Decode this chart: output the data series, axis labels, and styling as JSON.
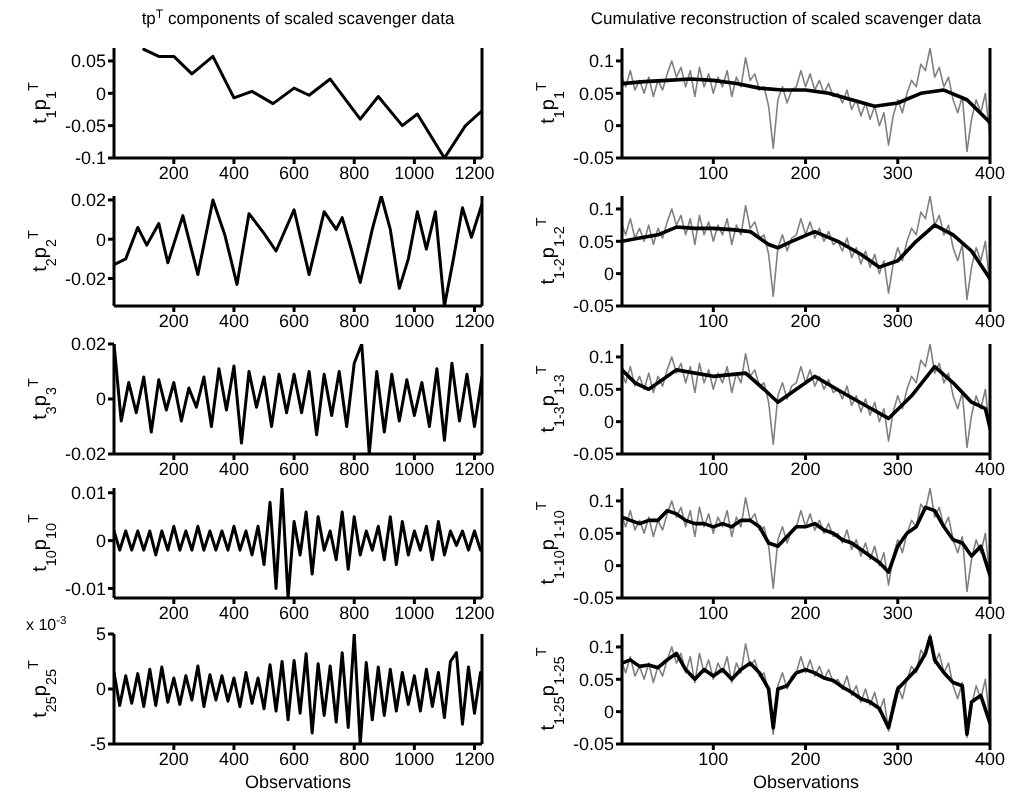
{
  "chart_data": [
    {
      "type": "line",
      "title": "tp$^{T}$ components of scaled scavenger data",
      "ylabel": "t$_{1}$p$_{1}$$^{T}$",
      "xlim": [
        1,
        1225
      ],
      "xticks": [
        200,
        400,
        600,
        800,
        1000,
        1200
      ],
      "ylim": [
        -0.1,
        0.07
      ],
      "yticks": [
        -0.1,
        -0.05,
        0,
        0.05
      ],
      "series": [
        {
          "color": "#000000",
          "x": [
            100,
            150,
            200,
            260,
            330,
            400,
            460,
            530,
            600,
            650,
            720,
            820,
            880,
            960,
            1010,
            1100,
            1170,
            1225
          ],
          "values": [
            0.068,
            0.057,
            0.057,
            0.03,
            0.057,
            -0.007,
            0.003,
            -0.016,
            0.008,
            -0.003,
            0.022,
            -0.04,
            -0.005,
            -0.05,
            -0.032,
            -0.1,
            -0.05,
            -0.027
          ]
        }
      ]
    },
    {
      "type": "line",
      "title": "Cumulative reconstruction of scaled scavenger data",
      "ylabel": "t$_{1}$p$_{1}$$^{T}$",
      "xlim": [
        1,
        400
      ],
      "xticks": [
        100,
        200,
        300,
        400
      ],
      "ylim": [
        -0.05,
        0.12
      ],
      "yticks": [
        -0.05,
        0,
        0.05,
        0.1
      ],
      "series": [
        {
          "color": "#808080",
          "x": [
            1,
            5,
            10,
            15,
            20,
            25,
            30,
            35,
            40,
            45,
            50,
            55,
            60,
            65,
            70,
            75,
            80,
            85,
            90,
            95,
            100,
            105,
            110,
            115,
            120,
            125,
            130,
            135,
            140,
            145,
            150,
            155,
            160,
            165,
            170,
            175,
            180,
            185,
            190,
            195,
            200,
            205,
            210,
            215,
            220,
            225,
            230,
            235,
            240,
            245,
            250,
            255,
            260,
            265,
            270,
            275,
            280,
            285,
            290,
            295,
            300,
            305,
            310,
            315,
            320,
            325,
            330,
            335,
            340,
            345,
            350,
            355,
            360,
            365,
            370,
            375,
            380,
            385,
            390,
            395,
            400
          ],
          "values": [
            0.075,
            0.06,
            0.085,
            0.055,
            0.07,
            0.05,
            0.075,
            0.045,
            0.07,
            0.055,
            0.08,
            0.1,
            0.075,
            0.09,
            0.06,
            0.085,
            0.045,
            0.09,
            0.06,
            0.08,
            0.05,
            0.075,
            0.06,
            0.085,
            0.045,
            0.075,
            0.06,
            0.105,
            0.07,
            0.08,
            0.055,
            0.06,
            0.03,
            -0.035,
            0.04,
            0.06,
            0.035,
            0.055,
            0.06,
            0.085,
            0.06,
            0.08,
            0.055,
            0.07,
            0.05,
            0.065,
            0.045,
            0.05,
            0.035,
            0.055,
            0.025,
            0.04,
            0.015,
            0.035,
            0.01,
            0.03,
            0.0,
            0.02,
            -0.03,
            0.015,
            0.04,
            0.02,
            0.05,
            0.07,
            0.06,
            0.095,
            0.085,
            0.12,
            0.075,
            0.09,
            0.06,
            0.075,
            0.04,
            0.02,
            0.045,
            -0.04,
            0.01,
            0.04,
            0.02,
            0.05,
            -0.02
          ]
        },
        {
          "color": "#000000",
          "x": [
            1,
            25,
            50,
            75,
            100,
            125,
            150,
            175,
            200,
            225,
            250,
            275,
            300,
            325,
            350,
            375,
            400
          ],
          "values": [
            0.065,
            0.068,
            0.07,
            0.072,
            0.07,
            0.065,
            0.058,
            0.055,
            0.055,
            0.05,
            0.04,
            0.03,
            0.035,
            0.05,
            0.055,
            0.04,
            0.005
          ]
        }
      ]
    },
    {
      "type": "line",
      "ylabel": "t$_{2}$p$_{2}$$^{T}$",
      "xlim": [
        1,
        1225
      ],
      "xticks": [
        200,
        400,
        600,
        800,
        1000,
        1200
      ],
      "ylim": [
        -0.034,
        0.022
      ],
      "yticks": [
        -0.02,
        0,
        0.02
      ],
      "series": [
        {
          "color": "#000000",
          "x": [
            1,
            40,
            80,
            110,
            150,
            180,
            230,
            280,
            330,
            370,
            410,
            450,
            500,
            540,
            600,
            650,
            700,
            740,
            760,
            790,
            820,
            860,
            890,
            920,
            950,
            980,
            1010,
            1040,
            1070,
            1100,
            1130,
            1160,
            1190,
            1225
          ],
          "values": [
            -0.013,
            -0.01,
            0.006,
            -0.003,
            0.008,
            -0.012,
            0.012,
            -0.018,
            0.02,
            0.002,
            -0.023,
            0.013,
            0.003,
            -0.006,
            0.015,
            -0.018,
            0.014,
            0.005,
            0.011,
            -0.005,
            -0.022,
            0.005,
            0.022,
            0.005,
            -0.025,
            -0.01,
            0.014,
            -0.005,
            0.014,
            -0.034,
            -0.01,
            0.016,
            0.001,
            0.018
          ]
        }
      ]
    },
    {
      "type": "line",
      "ylabel": "t$_{1-2}$p$_{1-2}$$^{T}$",
      "xlim": [
        1,
        400
      ],
      "xticks": [
        100,
        200,
        300,
        400
      ],
      "ylim": [
        -0.05,
        0.12
      ],
      "yticks": [
        -0.05,
        0,
        0.05,
        0.1
      ],
      "series": [
        {
          "color": "#808080",
          "x": [
            1,
            5,
            10,
            15,
            20,
            25,
            30,
            35,
            40,
            45,
            50,
            55,
            60,
            65,
            70,
            75,
            80,
            85,
            90,
            95,
            100,
            105,
            110,
            115,
            120,
            125,
            130,
            135,
            140,
            145,
            150,
            155,
            160,
            165,
            170,
            175,
            180,
            185,
            190,
            195,
            200,
            205,
            210,
            215,
            220,
            225,
            230,
            235,
            240,
            245,
            250,
            255,
            260,
            265,
            270,
            275,
            280,
            285,
            290,
            295,
            300,
            305,
            310,
            315,
            320,
            325,
            330,
            335,
            340,
            345,
            350,
            355,
            360,
            365,
            370,
            375,
            380,
            385,
            390,
            395,
            400
          ],
          "values": [
            0.075,
            0.06,
            0.085,
            0.055,
            0.07,
            0.05,
            0.075,
            0.045,
            0.07,
            0.055,
            0.08,
            0.1,
            0.075,
            0.09,
            0.06,
            0.085,
            0.045,
            0.09,
            0.06,
            0.08,
            0.05,
            0.075,
            0.06,
            0.085,
            0.045,
            0.075,
            0.06,
            0.105,
            0.07,
            0.08,
            0.055,
            0.06,
            0.03,
            -0.035,
            0.04,
            0.06,
            0.035,
            0.055,
            0.06,
            0.085,
            0.06,
            0.08,
            0.055,
            0.07,
            0.05,
            0.065,
            0.045,
            0.05,
            0.035,
            0.055,
            0.025,
            0.04,
            0.015,
            0.035,
            0.01,
            0.03,
            0.0,
            0.02,
            -0.03,
            0.015,
            0.04,
            0.02,
            0.05,
            0.07,
            0.06,
            0.095,
            0.085,
            0.12,
            0.075,
            0.09,
            0.06,
            0.075,
            0.04,
            0.02,
            0.045,
            -0.04,
            0.01,
            0.04,
            0.02,
            0.05,
            -0.02
          ]
        },
        {
          "color": "#000000",
          "x": [
            1,
            20,
            40,
            60,
            80,
            100,
            120,
            140,
            160,
            170,
            185,
            210,
            235,
            260,
            280,
            300,
            320,
            340,
            360,
            380,
            400
          ],
          "values": [
            0.05,
            0.055,
            0.06,
            0.072,
            0.07,
            0.07,
            0.068,
            0.065,
            0.045,
            0.04,
            0.05,
            0.065,
            0.05,
            0.03,
            0.01,
            0.02,
            0.05,
            0.075,
            0.06,
            0.035,
            -0.008
          ]
        }
      ]
    },
    {
      "type": "line",
      "ylabel": "t$_{3}$p$_{3}$$^{T}$",
      "xlim": [
        1,
        1225
      ],
      "xticks": [
        200,
        400,
        600,
        800,
        1000,
        1200
      ],
      "ylim": [
        -0.02,
        0.02
      ],
      "yticks": [
        -0.02,
        0,
        0.02
      ],
      "series": [
        {
          "color": "#000000",
          "x": [
            1,
            25,
            50,
            75,
            100,
            125,
            150,
            175,
            200,
            225,
            250,
            275,
            300,
            325,
            350,
            375,
            400,
            425,
            450,
            475,
            500,
            525,
            550,
            575,
            600,
            625,
            650,
            675,
            700,
            725,
            750,
            775,
            800,
            825,
            850,
            875,
            900,
            925,
            950,
            975,
            1000,
            1025,
            1050,
            1075,
            1100,
            1125,
            1150,
            1175,
            1200,
            1225
          ],
          "values": [
            0.02,
            -0.008,
            0.006,
            -0.005,
            0.008,
            -0.012,
            0.007,
            -0.004,
            0.006,
            -0.008,
            0.004,
            -0.003,
            0.008,
            -0.01,
            0.011,
            -0.004,
            0.012,
            -0.016,
            0.01,
            -0.003,
            0.008,
            -0.01,
            0.009,
            -0.005,
            0.009,
            -0.005,
            0.01,
            -0.013,
            0.009,
            -0.006,
            0.01,
            -0.01,
            0.013,
            0.02,
            -0.02,
            0.01,
            -0.012,
            0.009,
            -0.008,
            0.007,
            -0.006,
            0.006,
            -0.01,
            0.011,
            -0.015,
            0.013,
            -0.008,
            0.009,
            -0.01,
            0.008
          ]
        }
      ]
    },
    {
      "type": "line",
      "ylabel": "t$_{1-3}$p$_{1-3}$$^{T}$",
      "xlim": [
        1,
        400
      ],
      "xticks": [
        100,
        200,
        300,
        400
      ],
      "ylim": [
        -0.05,
        0.12
      ],
      "yticks": [
        -0.05,
        0,
        0.05,
        0.1
      ],
      "series": [
        {
          "color": "#808080",
          "x": [
            1,
            5,
            10,
            15,
            20,
            25,
            30,
            35,
            40,
            45,
            50,
            55,
            60,
            65,
            70,
            75,
            80,
            85,
            90,
            95,
            100,
            105,
            110,
            115,
            120,
            125,
            130,
            135,
            140,
            145,
            150,
            155,
            160,
            165,
            170,
            175,
            180,
            185,
            190,
            195,
            200,
            205,
            210,
            215,
            220,
            225,
            230,
            235,
            240,
            245,
            250,
            255,
            260,
            265,
            270,
            275,
            280,
            285,
            290,
            295,
            300,
            305,
            310,
            315,
            320,
            325,
            330,
            335,
            340,
            345,
            350,
            355,
            360,
            365,
            370,
            375,
            380,
            385,
            390,
            395,
            400
          ],
          "values": [
            0.075,
            0.06,
            0.085,
            0.055,
            0.07,
            0.05,
            0.075,
            0.045,
            0.07,
            0.055,
            0.08,
            0.1,
            0.075,
            0.09,
            0.06,
            0.085,
            0.045,
            0.09,
            0.06,
            0.08,
            0.05,
            0.075,
            0.06,
            0.085,
            0.045,
            0.075,
            0.06,
            0.105,
            0.07,
            0.08,
            0.055,
            0.06,
            0.03,
            -0.035,
            0.04,
            0.06,
            0.035,
            0.055,
            0.06,
            0.085,
            0.06,
            0.08,
            0.055,
            0.07,
            0.05,
            0.065,
            0.045,
            0.05,
            0.035,
            0.055,
            0.025,
            0.04,
            0.015,
            0.035,
            0.01,
            0.03,
            0.0,
            0.02,
            -0.03,
            0.015,
            0.04,
            0.02,
            0.05,
            0.07,
            0.06,
            0.095,
            0.085,
            0.12,
            0.075,
            0.09,
            0.06,
            0.075,
            0.04,
            0.02,
            0.045,
            -0.04,
            0.01,
            0.04,
            0.02,
            0.05,
            -0.02
          ]
        },
        {
          "color": "#000000",
          "x": [
            1,
            15,
            30,
            60,
            100,
            135,
            155,
            170,
            190,
            210,
            240,
            265,
            290,
            315,
            340,
            360,
            380,
            395,
            400
          ],
          "values": [
            0.08,
            0.06,
            0.05,
            0.08,
            0.07,
            0.075,
            0.05,
            0.03,
            0.05,
            0.07,
            0.045,
            0.025,
            0.005,
            0.04,
            0.085,
            0.06,
            0.03,
            0.02,
            -0.01
          ]
        }
      ]
    },
    {
      "type": "line",
      "ylabel": "t$_{10}$p$_{10}$$^{T}$",
      "xlim": [
        1,
        1225
      ],
      "xticks": [
        200,
        400,
        600,
        800,
        1000,
        1200
      ],
      "ylim": [
        -0.012,
        0.011
      ],
      "yticks": [
        -0.01,
        0,
        0.01
      ],
      "series": [
        {
          "color": "#000000",
          "x": [
            1,
            20,
            40,
            60,
            80,
            100,
            120,
            140,
            160,
            180,
            200,
            220,
            240,
            260,
            280,
            300,
            320,
            340,
            360,
            380,
            400,
            420,
            440,
            460,
            480,
            500,
            520,
            540,
            560,
            580,
            600,
            620,
            640,
            660,
            680,
            700,
            720,
            740,
            760,
            780,
            800,
            820,
            840,
            860,
            880,
            900,
            920,
            940,
            960,
            980,
            1000,
            1020,
            1040,
            1060,
            1080,
            1100,
            1120,
            1140,
            1160,
            1180,
            1200,
            1220
          ],
          "values": [
            0.002,
            -0.002,
            0.002,
            -0.002,
            0.002,
            -0.002,
            0.002,
            -0.003,
            0.002,
            -0.002,
            0.003,
            -0.002,
            0.002,
            -0.002,
            0.003,
            -0.002,
            0.002,
            -0.002,
            0.002,
            -0.002,
            0.003,
            -0.002,
            0.002,
            -0.003,
            0.003,
            -0.005,
            0.008,
            -0.01,
            0.011,
            -0.012,
            0.004,
            -0.003,
            0.006,
            -0.007,
            0.005,
            -0.002,
            0.002,
            -0.004,
            0.006,
            -0.006,
            0.005,
            -0.003,
            0.002,
            -0.002,
            0.003,
            -0.004,
            0.005,
            -0.005,
            0.004,
            -0.003,
            0.002,
            -0.002,
            0.003,
            -0.004,
            0.004,
            -0.003,
            0.002,
            -0.001,
            0.002,
            -0.002,
            0.002,
            -0.002
          ]
        }
      ]
    },
    {
      "type": "line",
      "ylabel": "t$_{1-10}$p$_{1-10}$$^{T}$",
      "xlim": [
        1,
        400
      ],
      "xticks": [
        100,
        200,
        300,
        400
      ],
      "ylim": [
        -0.05,
        0.12
      ],
      "yticks": [
        -0.05,
        0,
        0.05,
        0.1
      ],
      "series": [
        {
          "color": "#808080",
          "x": [
            1,
            5,
            10,
            15,
            20,
            25,
            30,
            35,
            40,
            45,
            50,
            55,
            60,
            65,
            70,
            75,
            80,
            85,
            90,
            95,
            100,
            105,
            110,
            115,
            120,
            125,
            130,
            135,
            140,
            145,
            150,
            155,
            160,
            165,
            170,
            175,
            180,
            185,
            190,
            195,
            200,
            205,
            210,
            215,
            220,
            225,
            230,
            235,
            240,
            245,
            250,
            255,
            260,
            265,
            270,
            275,
            280,
            285,
            290,
            295,
            300,
            305,
            310,
            315,
            320,
            325,
            330,
            335,
            340,
            345,
            350,
            355,
            360,
            365,
            370,
            375,
            380,
            385,
            390,
            395,
            400
          ],
          "values": [
            0.075,
            0.06,
            0.085,
            0.055,
            0.07,
            0.05,
            0.075,
            0.045,
            0.07,
            0.055,
            0.08,
            0.1,
            0.075,
            0.09,
            0.06,
            0.085,
            0.045,
            0.09,
            0.06,
            0.08,
            0.05,
            0.075,
            0.06,
            0.085,
            0.045,
            0.075,
            0.06,
            0.105,
            0.07,
            0.08,
            0.055,
            0.06,
            0.03,
            -0.035,
            0.04,
            0.06,
            0.035,
            0.055,
            0.06,
            0.085,
            0.06,
            0.08,
            0.055,
            0.07,
            0.05,
            0.065,
            0.045,
            0.05,
            0.035,
            0.055,
            0.025,
            0.04,
            0.015,
            0.035,
            0.01,
            0.03,
            0.0,
            0.02,
            -0.03,
            0.015,
            0.04,
            0.02,
            0.05,
            0.07,
            0.06,
            0.095,
            0.085,
            0.12,
            0.075,
            0.09,
            0.06,
            0.075,
            0.04,
            0.02,
            0.045,
            -0.04,
            0.01,
            0.04,
            0.02,
            0.05,
            -0.02
          ]
        },
        {
          "color": "#000000",
          "x": [
            1,
            10,
            20,
            30,
            40,
            50,
            60,
            70,
            80,
            90,
            100,
            110,
            120,
            130,
            140,
            150,
            160,
            170,
            180,
            190,
            200,
            210,
            220,
            230,
            240,
            250,
            260,
            270,
            280,
            290,
            300,
            310,
            320,
            330,
            340,
            350,
            360,
            370,
            380,
            390,
            400
          ],
          "values": [
            0.075,
            0.07,
            0.065,
            0.07,
            0.07,
            0.085,
            0.08,
            0.07,
            0.065,
            0.065,
            0.06,
            0.065,
            0.06,
            0.07,
            0.07,
            0.06,
            0.035,
            0.03,
            0.045,
            0.06,
            0.06,
            0.065,
            0.055,
            0.05,
            0.04,
            0.035,
            0.025,
            0.015,
            0.005,
            -0.01,
            0.03,
            0.05,
            0.06,
            0.09,
            0.085,
            0.06,
            0.04,
            0.035,
            0.015,
            0.03,
            -0.015
          ]
        }
      ]
    },
    {
      "type": "line",
      "xlabel": "Observations",
      "ylabel": "t$_{25}$p$_{25}$$^{T}$",
      "annotations": [
        "x 10$^{-3}$"
      ],
      "xlim": [
        1,
        1225
      ],
      "xticks": [
        200,
        400,
        600,
        800,
        1000,
        1200
      ],
      "ylim": [
        -5,
        5
      ],
      "yticks": [
        -5,
        0,
        5
      ],
      "series": [
        {
          "color": "#000000",
          "x": [
            1,
            20,
            40,
            60,
            80,
            100,
            120,
            140,
            160,
            180,
            200,
            220,
            240,
            260,
            280,
            300,
            320,
            340,
            360,
            380,
            400,
            420,
            440,
            460,
            480,
            500,
            520,
            540,
            560,
            580,
            600,
            620,
            640,
            660,
            680,
            700,
            720,
            740,
            760,
            780,
            800,
            820,
            840,
            860,
            880,
            900,
            920,
            940,
            960,
            980,
            1000,
            1020,
            1040,
            1060,
            1080,
            1100,
            1120,
            1140,
            1160,
            1180,
            1200,
            1220
          ],
          "values": [
            1.5,
            -1.5,
            1.2,
            -1.3,
            1.4,
            -1.6,
            1.8,
            -1.5,
            2.0,
            -1.2,
            1.0,
            -1.4,
            1.2,
            -1.0,
            2.1,
            -1.6,
            1.3,
            -1.0,
            1.2,
            -1.1,
            1.0,
            -1.6,
            1.5,
            -1.3,
            1.0,
            -1.8,
            2.2,
            -2.0,
            2.5,
            -2.8,
            2.6,
            -2.2,
            3.2,
            -4.0,
            2.3,
            -2.4,
            2.1,
            -3.0,
            3.3,
            -3.5,
            5,
            -5,
            2.4,
            -2.8,
            2.0,
            -2.4,
            1.8,
            -2.0,
            1.5,
            -1.4,
            1.2,
            -2.0,
            1.8,
            -1.6,
            1.5,
            -2.6,
            2.5,
            3.3,
            -3.2,
            2.0,
            -2.2,
            1.5
          ]
        }
      ]
    },
    {
      "type": "line",
      "xlabel": "Observations",
      "ylabel": "t$_{1-25}$p$_{1-25}$$^{T}$",
      "xlim": [
        1,
        400
      ],
      "xticks": [
        100,
        200,
        300,
        400
      ],
      "ylim": [
        -0.05,
        0.12
      ],
      "yticks": [
        -0.05,
        0,
        0.05,
        0.1
      ],
      "series": [
        {
          "color": "#808080",
          "x": [
            1,
            5,
            10,
            15,
            20,
            25,
            30,
            35,
            40,
            45,
            50,
            55,
            60,
            65,
            70,
            75,
            80,
            85,
            90,
            95,
            100,
            105,
            110,
            115,
            120,
            125,
            130,
            135,
            140,
            145,
            150,
            155,
            160,
            165,
            170,
            175,
            180,
            185,
            190,
            195,
            200,
            205,
            210,
            215,
            220,
            225,
            230,
            235,
            240,
            245,
            250,
            255,
            260,
            265,
            270,
            275,
            280,
            285,
            290,
            295,
            300,
            305,
            310,
            315,
            320,
            325,
            330,
            335,
            340,
            345,
            350,
            355,
            360,
            365,
            370,
            375,
            380,
            385,
            390,
            395,
            400
          ],
          "values": [
            0.075,
            0.06,
            0.085,
            0.055,
            0.07,
            0.05,
            0.075,
            0.045,
            0.07,
            0.055,
            0.08,
            0.1,
            0.075,
            0.09,
            0.06,
            0.085,
            0.045,
            0.09,
            0.06,
            0.08,
            0.05,
            0.075,
            0.06,
            0.085,
            0.045,
            0.075,
            0.06,
            0.105,
            0.07,
            0.08,
            0.055,
            0.06,
            0.03,
            -0.035,
            0.04,
            0.06,
            0.035,
            0.055,
            0.06,
            0.085,
            0.06,
            0.08,
            0.055,
            0.07,
            0.05,
            0.065,
            0.045,
            0.05,
            0.035,
            0.055,
            0.025,
            0.04,
            0.015,
            0.035,
            0.01,
            0.03,
            0.0,
            0.02,
            -0.03,
            0.015,
            0.04,
            0.02,
            0.05,
            0.07,
            0.06,
            0.095,
            0.085,
            0.12,
            0.075,
            0.09,
            0.06,
            0.075,
            0.04,
            0.02,
            0.045,
            -0.04,
            0.01,
            0.04,
            0.02,
            0.05,
            -0.02
          ]
        },
        {
          "color": "#000000",
          "x": [
            1,
            10,
            20,
            30,
            40,
            50,
            60,
            70,
            80,
            90,
            100,
            110,
            120,
            130,
            140,
            150,
            160,
            165,
            170,
            180,
            190,
            200,
            210,
            220,
            230,
            240,
            250,
            260,
            270,
            280,
            290,
            300,
            310,
            320,
            330,
            335,
            340,
            350,
            360,
            370,
            375,
            380,
            390,
            400
          ],
          "values": [
            0.075,
            0.08,
            0.07,
            0.072,
            0.068,
            0.08,
            0.09,
            0.065,
            0.05,
            0.065,
            0.055,
            0.065,
            0.05,
            0.065,
            0.075,
            0.06,
            0.035,
            -0.025,
            0.035,
            0.04,
            0.06,
            0.065,
            0.06,
            0.052,
            0.048,
            0.038,
            0.03,
            0.02,
            0.015,
            0.005,
            -0.025,
            0.035,
            0.05,
            0.065,
            0.09,
            0.115,
            0.08,
            0.06,
            0.045,
            0.04,
            -0.035,
            0.015,
            0.025,
            -0.018
          ]
        }
      ]
    }
  ]
}
